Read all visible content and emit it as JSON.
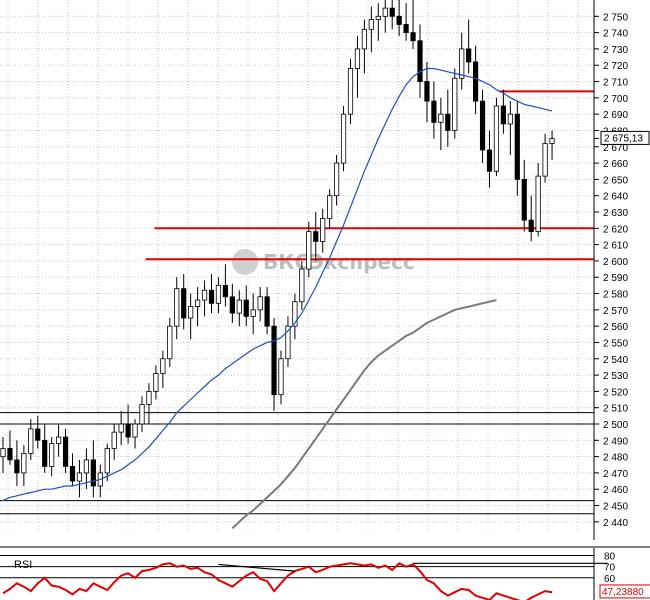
{
  "chart_data": [
    {
      "type": "candlestick",
      "title": "",
      "ylim": [
        2435,
        2760
      ],
      "y_ticks": [
        2440,
        2450,
        2460,
        2470,
        2480,
        2490,
        2500,
        2510,
        2520,
        2530,
        2540,
        2550,
        2560,
        2570,
        2580,
        2590,
        2600,
        2610,
        2620,
        2630,
        2640,
        2650,
        2660,
        2670,
        2680,
        2690,
        2700,
        2710,
        2720,
        2730,
        2740,
        2750
      ],
      "y_tick_labels": [
        "2 440",
        "2 450",
        "2 460",
        "2 470",
        "2 480",
        "2 490",
        "2 500",
        "2 510",
        "2 520",
        "2 530",
        "2 540",
        "2 550",
        "2 560",
        "2 570",
        "2 580",
        "2 590",
        "2 600",
        "2 610",
        "2 620",
        "2 630",
        "2 640",
        "2 650",
        "2 660",
        "2 670",
        "2 680",
        "2 690",
        "2 700",
        "2 710",
        "2 720",
        "2 730",
        "2 740",
        "2 750"
      ],
      "last_price": 2675.13,
      "last_price_label": "2 675,13",
      "grid": true,
      "watermark": "БКСЭкспресс",
      "horizontal_levels": [
        {
          "value": 2704,
          "color": "#e00000",
          "x_start": 0.84,
          "x_end": 1.0
        },
        {
          "value": 2620,
          "color": "#e00000",
          "x_start": 0.26,
          "x_end": 1.0
        },
        {
          "value": 2601,
          "color": "#e00000",
          "x_start": 0.245,
          "x_end": 1.0
        },
        {
          "value": 2507,
          "color": "#000000",
          "x_start": 0.0,
          "x_end": 1.0
        },
        {
          "value": 2500,
          "color": "#000000",
          "x_start": 0.0,
          "x_end": 1.0
        },
        {
          "value": 2453,
          "color": "#000000",
          "x_start": 0.0,
          "x_end": 1.0
        },
        {
          "value": 2445,
          "color": "#000000",
          "x_start": 0.0,
          "x_end": 1.0
        }
      ],
      "series": [
        {
          "type": "candles",
          "ohlc": [
            [
              2480,
              2492,
              2470,
              2485
            ],
            [
              2485,
              2496,
              2475,
              2478
            ],
            [
              2478,
              2490,
              2462,
              2470
            ],
            [
              2470,
              2487,
              2462,
              2482
            ],
            [
              2482,
              2503,
              2478,
              2497
            ],
            [
              2497,
              2505,
              2485,
              2490
            ],
            [
              2490,
              2500,
              2470,
              2474
            ],
            [
              2474,
              2492,
              2468,
              2488
            ],
            [
              2488,
              2500,
              2480,
              2492
            ],
            [
              2492,
              2497,
              2470,
              2474
            ],
            [
              2474,
              2482,
              2462,
              2465
            ],
            [
              2465,
              2478,
              2455,
              2470
            ],
            [
              2470,
              2485,
              2460,
              2478
            ],
            [
              2478,
              2490,
              2455,
              2462
            ],
            [
              2462,
              2475,
              2455,
              2470
            ],
            [
              2470,
              2488,
              2465,
              2485
            ],
            [
              2485,
              2500,
              2478,
              2495
            ],
            [
              2495,
              2508,
              2487,
              2500
            ],
            [
              2500,
              2512,
              2488,
              2492
            ],
            [
              2492,
              2503,
              2485,
              2500
            ],
            [
              2500,
              2517,
              2495,
              2512
            ],
            [
              2512,
              2525,
              2500,
              2520
            ],
            [
              2520,
              2536,
              2515,
              2531
            ],
            [
              2531,
              2545,
              2522,
              2540
            ],
            [
              2540,
              2565,
              2535,
              2560
            ],
            [
              2560,
              2590,
              2552,
              2583
            ],
            [
              2583,
              2592,
              2558,
              2565
            ],
            [
              2565,
              2580,
              2552,
              2572
            ],
            [
              2572,
              2584,
              2560,
              2576
            ],
            [
              2576,
              2588,
              2566,
              2582
            ],
            [
              2582,
              2592,
              2568,
              2574
            ],
            [
              2574,
              2590,
              2568,
              2585
            ],
            [
              2585,
              2598,
              2572,
              2578
            ],
            [
              2578,
              2586,
              2562,
              2568
            ],
            [
              2568,
              2582,
              2560,
              2576
            ],
            [
              2576,
              2585,
              2560,
              2566
            ],
            [
              2566,
              2580,
              2555,
              2570
            ],
            [
              2570,
              2584,
              2563,
              2578
            ],
            [
              2578,
              2584,
              2555,
              2560
            ],
            [
              2560,
              2565,
              2508,
              2518
            ],
            [
              2518,
              2545,
              2512,
              2540
            ],
            [
              2540,
              2566,
              2535,
              2560
            ],
            [
              2560,
              2580,
              2552,
              2575
            ],
            [
              2575,
              2600,
              2570,
              2595
            ],
            [
              2595,
              2624,
              2590,
              2618
            ],
            [
              2618,
              2630,
              2600,
              2612
            ],
            [
              2612,
              2632,
              2605,
              2626
            ],
            [
              2626,
              2644,
              2620,
              2640
            ],
            [
              2640,
              2665,
              2634,
              2660
            ],
            [
              2660,
              2695,
              2655,
              2690
            ],
            [
              2690,
              2724,
              2684,
              2718
            ],
            [
              2718,
              2738,
              2700,
              2730
            ],
            [
              2730,
              2748,
              2715,
              2742
            ],
            [
              2742,
              2756,
              2728,
              2748
            ],
            [
              2748,
              2758,
              2735,
              2750
            ],
            [
              2750,
              2760,
              2740,
              2755
            ],
            [
              2755,
              2760,
              2742,
              2750
            ],
            [
              2750,
              2760,
              2738,
              2745
            ],
            [
              2745,
              2758,
              2735,
              2740
            ],
            [
              2740,
              2760,
              2730,
              2735
            ],
            [
              2735,
              2745,
              2700,
              2710
            ],
            [
              2710,
              2722,
              2685,
              2698
            ],
            [
              2698,
              2710,
              2675,
              2685
            ],
            [
              2685,
              2700,
              2668,
              2690
            ],
            [
              2690,
              2705,
              2670,
              2680
            ],
            [
              2680,
              2718,
              2675,
              2712
            ],
            [
              2712,
              2740,
              2705,
              2730
            ],
            [
              2730,
              2748,
              2715,
              2722
            ],
            [
              2722,
              2732,
              2690,
              2698
            ],
            [
              2698,
              2705,
              2660,
              2668
            ],
            [
              2668,
              2680,
              2645,
              2655
            ],
            [
              2655,
              2700,
              2652,
              2695
            ],
            [
              2695,
              2705,
              2678,
              2684
            ],
            [
              2684,
              2698,
              2665,
              2690
            ],
            [
              2690,
              2698,
              2640,
              2650
            ],
            [
              2650,
              2662,
              2618,
              2625
            ],
            [
              2625,
              2640,
              2612,
              2618
            ],
            [
              2618,
              2660,
              2615,
              2652
            ],
            [
              2652,
              2678,
              2648,
              2672
            ],
            [
              2672,
              2680,
              2662,
              2675
            ]
          ]
        },
        {
          "type": "line",
          "color": "#1f4fbf",
          "values": [
            2453,
            2455,
            2456,
            2457,
            2458,
            2459,
            2460,
            2460,
            2461,
            2462,
            2462,
            2463,
            2464,
            2465,
            2466,
            2468,
            2470,
            2472,
            2475,
            2478,
            2482,
            2486,
            2491,
            2496,
            2501,
            2507,
            2511,
            2515,
            2519,
            2523,
            2527,
            2530,
            2534,
            2537,
            2540,
            2543,
            2546,
            2548,
            2550,
            2551,
            2553,
            2557,
            2562,
            2568,
            2576,
            2584,
            2593,
            2602,
            2612,
            2622,
            2633,
            2644,
            2655,
            2665,
            2675,
            2684,
            2693,
            2701,
            2708,
            2713,
            2716,
            2718,
            2718,
            2717,
            2716,
            2715,
            2714,
            2713,
            2712,
            2710,
            2708,
            2705,
            2703,
            2700,
            2698,
            2696,
            2695,
            2694,
            2693,
            2692
          ]
        },
        {
          "type": "line",
          "color": "#7a7a7a",
          "start_index": 33,
          "values": [
            2436,
            2440,
            2444,
            2447,
            2451,
            2455,
            2459,
            2463,
            2468,
            2473,
            2479,
            2485,
            2491,
            2497,
            2503,
            2509,
            2515,
            2521,
            2527,
            2533,
            2538,
            2542,
            2545,
            2548,
            2551,
            2554,
            2556,
            2559,
            2562,
            2564,
            2566,
            2568,
            2570,
            2571,
            2572,
            2573,
            2574,
            2575,
            2576
          ]
        }
      ]
    },
    {
      "type": "line",
      "title": "RSI",
      "ylim": [
        40,
        85
      ],
      "y_ticks": [
        80,
        70,
        60
      ],
      "y_tick_labels": [
        "80",
        "70",
        "60"
      ],
      "last_value": 47.2388,
      "last_value_label": "47,23880",
      "series": [
        {
          "name": "RSI",
          "color": "#e00000",
          "values": [
            46,
            50,
            55,
            52,
            48,
            55,
            60,
            53,
            52,
            49,
            45,
            50,
            48,
            55,
            52,
            49,
            56,
            62,
            64,
            60,
            66,
            67,
            69,
            72,
            73,
            70,
            71,
            68,
            69,
            65,
            63,
            58,
            55,
            52,
            57,
            62,
            65,
            59,
            57,
            48,
            55,
            62,
            66,
            68,
            70,
            65,
            67,
            70,
            71,
            72,
            73,
            72,
            71,
            72,
            69,
            71,
            67,
            73,
            70,
            72,
            66,
            58,
            55,
            48,
            44,
            47,
            50,
            49,
            44,
            42,
            40,
            46,
            44,
            42,
            40,
            38,
            42,
            45,
            48,
            47
          ]
        }
      ],
      "divergence_lines": [
        {
          "from_index": 31,
          "from_value": 72,
          "to_index": 42,
          "to_value": 66
        },
        {
          "from_index": 59,
          "from_value": 73,
          "to_index": 87,
          "to_value": 73
        }
      ]
    }
  ]
}
